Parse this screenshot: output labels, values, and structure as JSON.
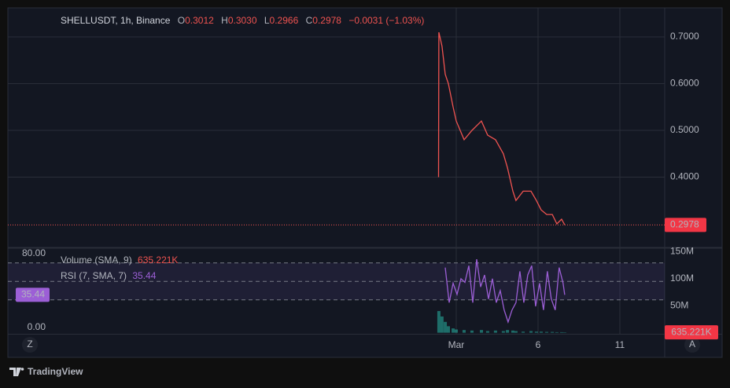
{
  "chart_data": [
    {
      "type": "line",
      "title": "SHELLUSDT, 1h, Binance",
      "ohlc": [
        [
          "O",
          "0.3012"
        ],
        [
          "H",
          "0.3030"
        ],
        [
          "L",
          "0.2966"
        ],
        [
          "C",
          "0.2978"
        ]
      ],
      "change": "−0.0031 (−1.03%)",
      "x": [
        -0.08,
        -0.06,
        0.13,
        0.33,
        0.52,
        0.81,
        1.0,
        1.48,
        1.96,
        2.54,
        2.92,
        3.4,
        3.88,
        4.13,
        4.46,
        4.65,
        5.09,
        5.57,
        5.9,
        6.19,
        6.53,
        6.87,
        7.15,
        7.44,
        7.63
      ],
      "series": [
        {
          "color": "#ef5350",
          "values": [
            0.4,
            0.71,
            0.68,
            0.62,
            0.6,
            0.55,
            0.52,
            0.48,
            0.5,
            0.52,
            0.49,
            0.48,
            0.45,
            0.42,
            0.37,
            0.35,
            0.37,
            0.37,
            0.35,
            0.33,
            0.32,
            0.32,
            0.3,
            0.31,
            0.2978
          ]
        }
      ],
      "xlim": [
        -26.4,
        13.74
      ],
      "ylim": [
        0.2496,
        0.7622
      ],
      "xticks": [
        {
          "value": 1,
          "label": "Mar"
        },
        6,
        11
      ],
      "yticks": [
        {
          "value": 0.4,
          "label": "0.4000"
        },
        {
          "value": 0.5,
          "label": "0.5000"
        },
        {
          "value": 0.6,
          "label": "0.6000"
        },
        {
          "value": 0.7,
          "label": "0.7000"
        }
      ],
      "last": {
        "value": 0.2978,
        "label": "0.2978"
      },
      "grid": true
    },
    {
      "type": "line",
      "legend": "RSI (7, SMA, 7)",
      "legend_value": "35.44",
      "x": [
        0.33,
        0.57,
        0.81,
        1.05,
        1.29,
        1.53,
        1.77,
        2.01,
        2.25,
        2.49,
        2.73,
        2.97,
        3.21,
        3.45,
        3.69,
        3.93,
        4.17,
        4.41,
        4.65,
        4.89,
        5.13,
        5.37,
        5.61,
        5.85,
        6.09,
        6.33,
        6.57,
        6.81,
        7.05,
        7.29,
        7.53,
        7.63
      ],
      "series": [
        {
          "color": "#9c5fd6",
          "values": [
            65,
            27,
            48,
            36,
            53,
            49,
            67,
            27,
            74,
            44,
            57,
            31,
            53,
            27,
            40,
            19,
            6,
            19,
            27,
            61,
            27,
            57,
            67,
            23,
            48,
            19,
            61,
            31,
            19,
            65,
            48,
            35.44
          ]
        }
      ],
      "xlim": [
        -26.4,
        13.74
      ],
      "ylim": [
        -6.8,
        86
      ],
      "yticks": [
        {
          "value": 80,
          "label": "80.00"
        },
        {
          "value": 0,
          "label": "0.00"
        }
      ],
      "levels": [
        70,
        50,
        30
      ],
      "last": {
        "value": 35.44,
        "label": "35.44"
      }
    },
    {
      "type": "bar",
      "legend": "Volume (SMA, 9)",
      "legend_value": "635.221K",
      "color": "#26a69a",
      "x": [
        -0.06,
        0.13,
        0.33,
        0.52,
        0.81,
        1.0,
        1.48,
        1.96,
        2.54,
        2.92,
        3.4,
        3.88,
        4.13,
        4.46,
        4.65,
        5.09,
        5.57,
        5.9,
        6.19,
        6.53,
        6.87,
        7.15,
        7.44,
        7.63
      ],
      "values": [
        40000000,
        30000000,
        20000000,
        12000000,
        8000000,
        6000000,
        5000000,
        4000000,
        5000000,
        3000000,
        4000000,
        3000000,
        5000000,
        4000000,
        3000000,
        2000000,
        3000000,
        2000000,
        2000000,
        1500000,
        1500000,
        1000000,
        1000000,
        635221
      ],
      "xlim": [
        -26.4,
        13.74
      ],
      "ylim": [
        -2000000,
        156000000
      ],
      "yticks": [
        {
          "value": 50000000,
          "label": "50M"
        },
        {
          "value": 100000000,
          "label": "100M"
        },
        {
          "value": 150000000,
          "label": "150M"
        }
      ],
      "last": {
        "value": 635221,
        "label": "635.221K"
      }
    }
  ],
  "buttons": [
    "Z",
    "A"
  ],
  "footer": "TradingView"
}
